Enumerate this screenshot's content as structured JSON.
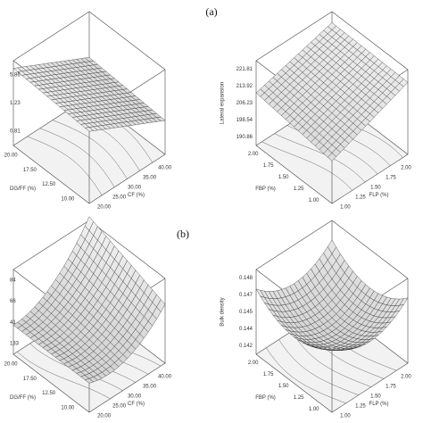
{
  "labels": {
    "a": "(a)",
    "b": "(b)"
  },
  "panels": [
    {
      "z_ticks": [
        "0.81",
        "1.23",
        "5.86"
      ],
      "z_label": null,
      "left_label": "DG/FF (%)",
      "left_ticks": [
        "10.00",
        "12.50",
        "17.50",
        "20.00"
      ],
      "right_label": "CF (%)",
      "right_ticks": [
        "20.00",
        "25.00",
        "30.00",
        "35.00",
        "40.00"
      ]
    },
    {
      "z_ticks": [
        "190.86",
        "198.54",
        "206.23",
        "213.92",
        "221.81"
      ],
      "z_label": "Lateral expansion",
      "left_label": "FBP (%)",
      "left_ticks": [
        "1.00",
        "1.25",
        "1.50",
        "1.75",
        "2.00"
      ],
      "right_label": "FLP (%)",
      "right_ticks": [
        "1.00",
        "1.25",
        "1.50",
        "1.75",
        "2.00"
      ]
    },
    {
      "z_ticks": [
        "133",
        "41",
        "66",
        "84"
      ],
      "z_label": null,
      "left_label": "DG/FF (%)",
      "left_ticks": [
        "10.00",
        "12.50",
        "17.50",
        "20.00"
      ],
      "right_label": "CF (%)",
      "right_ticks": [
        "20.00",
        "25.00",
        "30.00",
        "35.00",
        "40.00"
      ]
    },
    {
      "z_ticks": [
        "0.142",
        "0.144",
        "0.145",
        "0.147",
        "0.148"
      ],
      "z_label": "Bulk density",
      "left_label": "FBP (%)",
      "left_ticks": [
        "1.00",
        "1.25",
        "1.50",
        "1.75",
        "2.00"
      ],
      "right_label": "FLP (%)",
      "right_ticks": [
        "1.00",
        "1.25",
        "1.50",
        "1.75",
        "2.00"
      ]
    }
  ]
}
